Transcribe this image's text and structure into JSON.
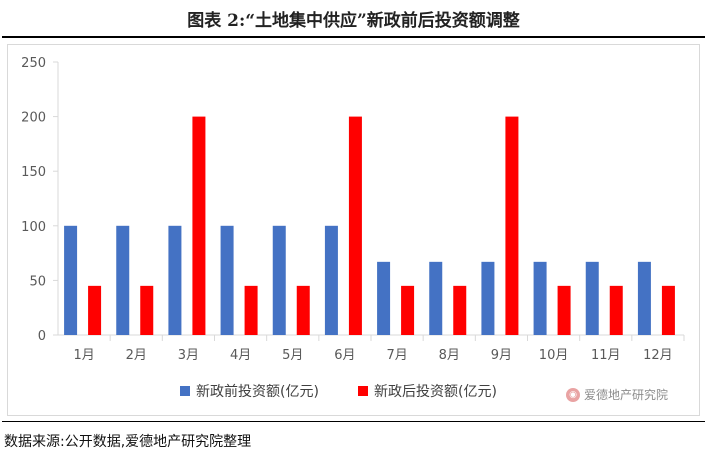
{
  "title": "图表 2:“土地集中供应”新政前后投资额调整",
  "source": "数据来源:公开数据,爱德地产研究院整理",
  "watermark": "爱德地产研究院",
  "chart_data": {
    "type": "bar",
    "categories": [
      "1月",
      "2月",
      "3月",
      "4月",
      "5月",
      "6月",
      "7月",
      "8月",
      "9月",
      "10月",
      "11月",
      "12月"
    ],
    "series": [
      {
        "name": "新政前投资额(亿元)",
        "color": "#4472c4",
        "values": [
          100,
          100,
          100,
          100,
          100,
          100,
          67,
          67,
          67,
          67,
          67,
          67
        ]
      },
      {
        "name": "新政后投资额(亿元)",
        "color": "#ff0000",
        "values": [
          45,
          45,
          200,
          45,
          45,
          200,
          45,
          45,
          200,
          45,
          45,
          45
        ]
      }
    ],
    "ylim": [
      0,
      250
    ],
    "yticks": [
      0,
      50,
      100,
      150,
      200,
      250
    ],
    "grid": false,
    "legend_position": "bottom"
  }
}
